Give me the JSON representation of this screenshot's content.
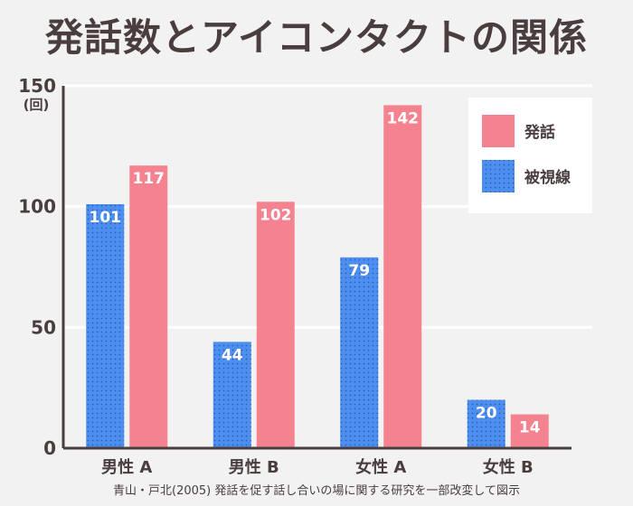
{
  "chart_data": {
    "type": "bar",
    "title": "発話数とアイコンタクトの関係",
    "categories": [
      "男性 A",
      "男性 B",
      "女性 A",
      "女性 B"
    ],
    "series": [
      {
        "name": "被視線",
        "values": [
          101,
          44,
          79,
          20
        ],
        "color": "#4d8ff0"
      },
      {
        "name": "発話",
        "values": [
          117,
          102,
          142,
          14
        ],
        "color": "#f4838f"
      }
    ],
    "ylim": [
      0,
      150
    ],
    "yticks": [
      "0",
      "50",
      "100",
      "150"
    ],
    "ylabel_unit": "(回)",
    "grid": true,
    "legend_position": "top-right",
    "source": "青山・戸北(2005) 発話を促す話し合いの場に関する研究を一部改変して図示"
  }
}
